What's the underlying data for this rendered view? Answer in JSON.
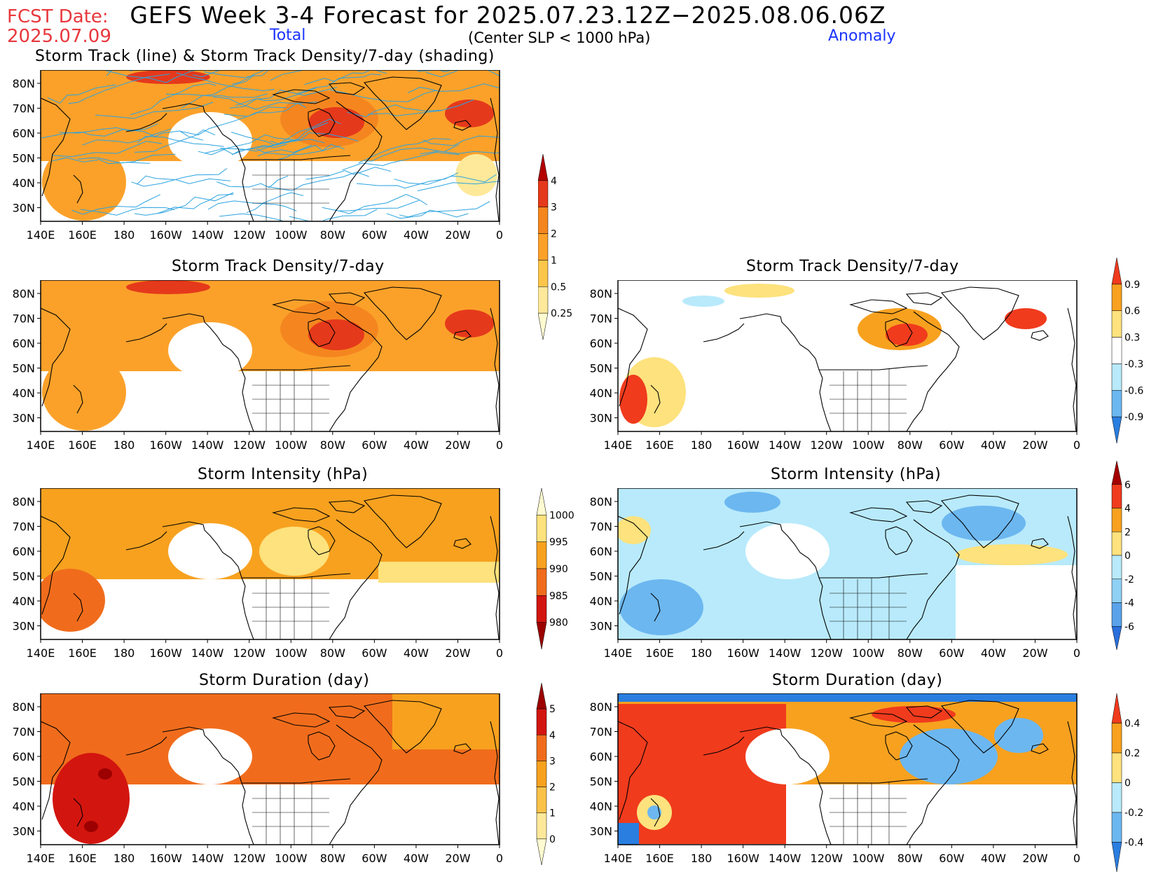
{
  "header": {
    "fcst_label": "FCST Date:",
    "fcst_date": "2025.07.09",
    "title": "GEFS Week 3-4 Forecast for 2025.07.23.12Z−2025.08.06.06Z",
    "total_label": "Total",
    "criterion": "(Center SLP < 1000 hPa)",
    "anomaly_label": "Anomaly"
  },
  "axes": {
    "lon_ticks": [
      "140E",
      "160E",
      "180",
      "160W",
      "140W",
      "120W",
      "100W",
      "80W",
      "60W",
      "40W",
      "20W",
      "0"
    ],
    "lat_ticks": [
      "80N",
      "70N",
      "60N",
      "50N",
      "40N",
      "30N"
    ]
  },
  "panels": [
    {
      "id": "p1",
      "title": "Storm Track (line) & Storm Track Density/7-day (shading)"
    },
    {
      "id": "p2",
      "title": "Storm Track Density/7-day"
    },
    {
      "id": "p3",
      "title": "Storm Track Density/7-day"
    },
    {
      "id": "p4",
      "title": "Storm Intensity (hPa)"
    },
    {
      "id": "p5",
      "title": "Storm Intensity (hPa)"
    },
    {
      "id": "p6",
      "title": "Storm Duration (day)"
    },
    {
      "id": "p7",
      "title": "Storm Duration (day)"
    }
  ],
  "colorbars": [
    {
      "id": "cb-density",
      "labels": [
        "4",
        "3",
        "2",
        "1",
        "0.5",
        "0.25"
      ],
      "colors": [
        "#b30000",
        "#e5391b",
        "#f5861f",
        "#fba12a",
        "#fdc54a",
        "#fee99a",
        "#fffbd0"
      ]
    },
    {
      "id": "cb-density-anom",
      "labels": [
        "0.9",
        "0.6",
        "0.3",
        "-0.3",
        "-0.6",
        "-0.9"
      ],
      "colors": [
        "#f03b1d",
        "#f7a11f",
        "#fde27d",
        "#ffffff",
        "#b8eafb",
        "#6cb7f0",
        "#2a7ee0"
      ]
    },
    {
      "id": "cb-intensity",
      "labels": [
        "1000",
        "995",
        "990",
        "985",
        "980"
      ],
      "colors": [
        "#fffbd0",
        "#fde27d",
        "#f7a11f",
        "#f06c1c",
        "#d3150f",
        "#9c0000"
      ]
    },
    {
      "id": "cb-intensity-anom",
      "labels": [
        "6",
        "4",
        "2",
        "0",
        "-2",
        "-4",
        "-6"
      ],
      "colors": [
        "#a50000",
        "#f03b1d",
        "#f7a11f",
        "#fde27d",
        "#b8eafb",
        "#8fd0f5",
        "#5aa2ea",
        "#2a6fdc"
      ]
    },
    {
      "id": "cb-duration",
      "labels": [
        "5",
        "4",
        "3",
        "2",
        "1",
        "0"
      ],
      "colors": [
        "#9c0000",
        "#d3150f",
        "#f06c1c",
        "#f7a11f",
        "#fbc24a",
        "#fee99a",
        "#fffbd0"
      ]
    },
    {
      "id": "cb-duration-anom",
      "labels": [
        "0.4",
        "0.2",
        "0",
        "-0.2",
        "-0.4"
      ],
      "colors": [
        "#f03b1d",
        "#f7a11f",
        "#fde27d",
        "#b8eafb",
        "#6cb7f0",
        "#2a7ee0"
      ]
    }
  ],
  "colors": {
    "track_line": "#2ba3e0",
    "coast": "#000000"
  }
}
